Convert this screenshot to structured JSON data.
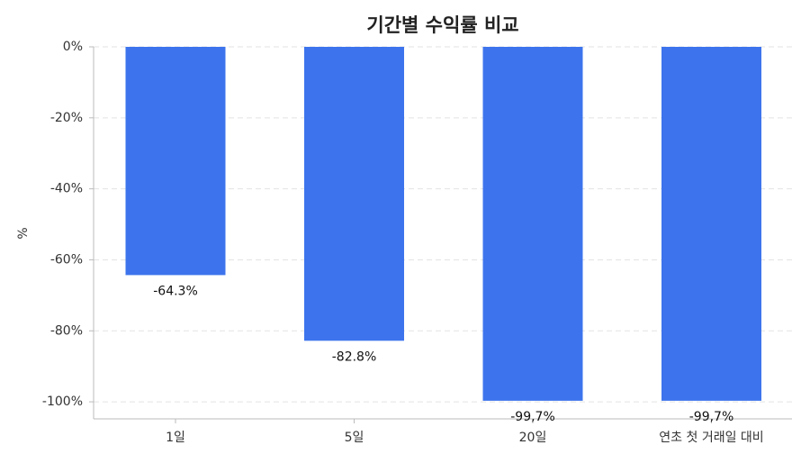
{
  "chart_data": {
    "type": "bar",
    "title": "기간별 수익률 비교",
    "y_label": "%",
    "categories": [
      "1일",
      "5일",
      "20일",
      "연초 첫 거래일 대비"
    ],
    "values": [
      -64.3,
      -82.8,
      -99.7,
      -99.7
    ],
    "value_labels": [
      "-64.3%",
      "-82.8%",
      "-99,7%",
      "-99,7%"
    ],
    "color": "#3d74ed",
    "ylim": [
      -104.8,
      0
    ],
    "yticks": [
      {
        "value": 0,
        "label": "0%"
      },
      {
        "value": -20,
        "label": "-20%"
      },
      {
        "value": -40,
        "label": "-40%"
      },
      {
        "value": -60,
        "label": "-60%"
      },
      {
        "value": -80,
        "label": "-80%"
      },
      {
        "value": -100,
        "label": "-100%"
      }
    ],
    "grid": true
  }
}
